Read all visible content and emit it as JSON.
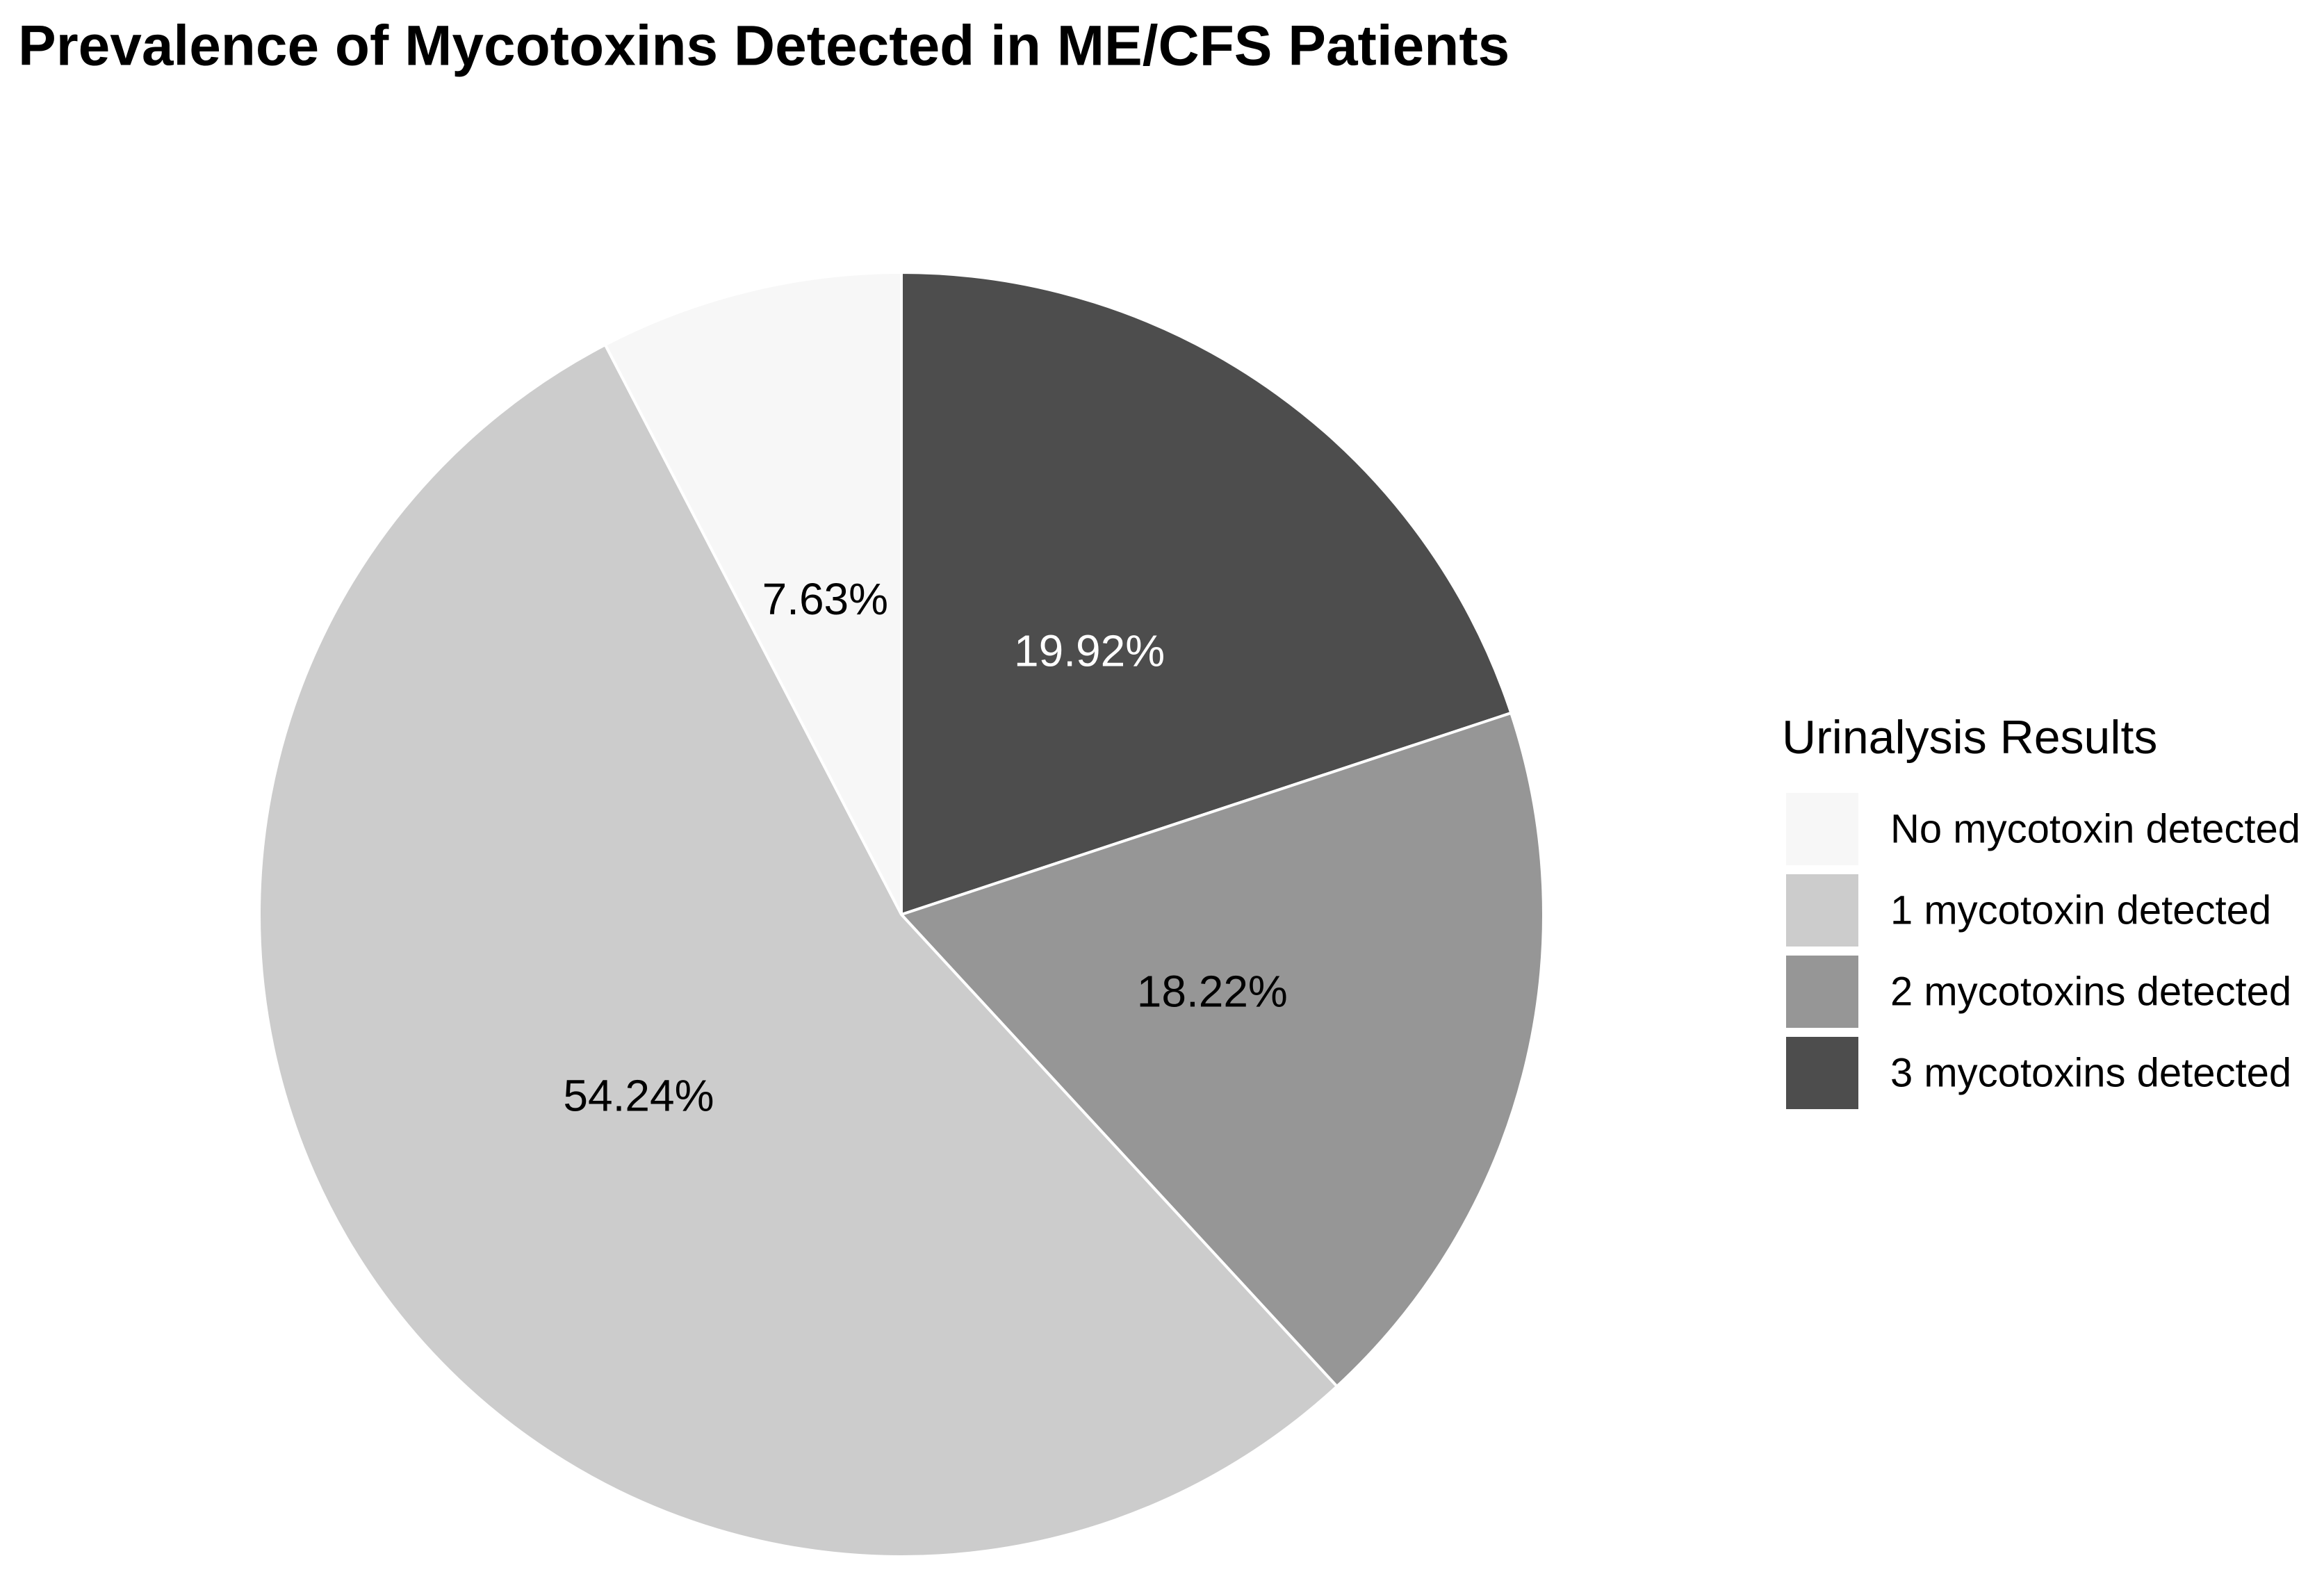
{
  "chart_data": {
    "type": "pie",
    "title": "Prevalence of Mycotoxins Detected in ME/CFS Patients",
    "legend_title": "Urinalysis Results",
    "categories": [
      "No mycotoxin detected",
      "1 mycotoxin detected",
      "2 mycotoxins detected",
      "3 mycotoxins detected"
    ],
    "values": [
      7.63,
      54.24,
      18.22,
      19.92
    ],
    "value_labels": [
      "7.63%",
      "54.24%",
      "18.22%",
      "19.92%"
    ],
    "colors": [
      "#f7f7f7",
      "#cccccc",
      "#969696",
      "#4d4d4d"
    ],
    "legend": "right"
  }
}
